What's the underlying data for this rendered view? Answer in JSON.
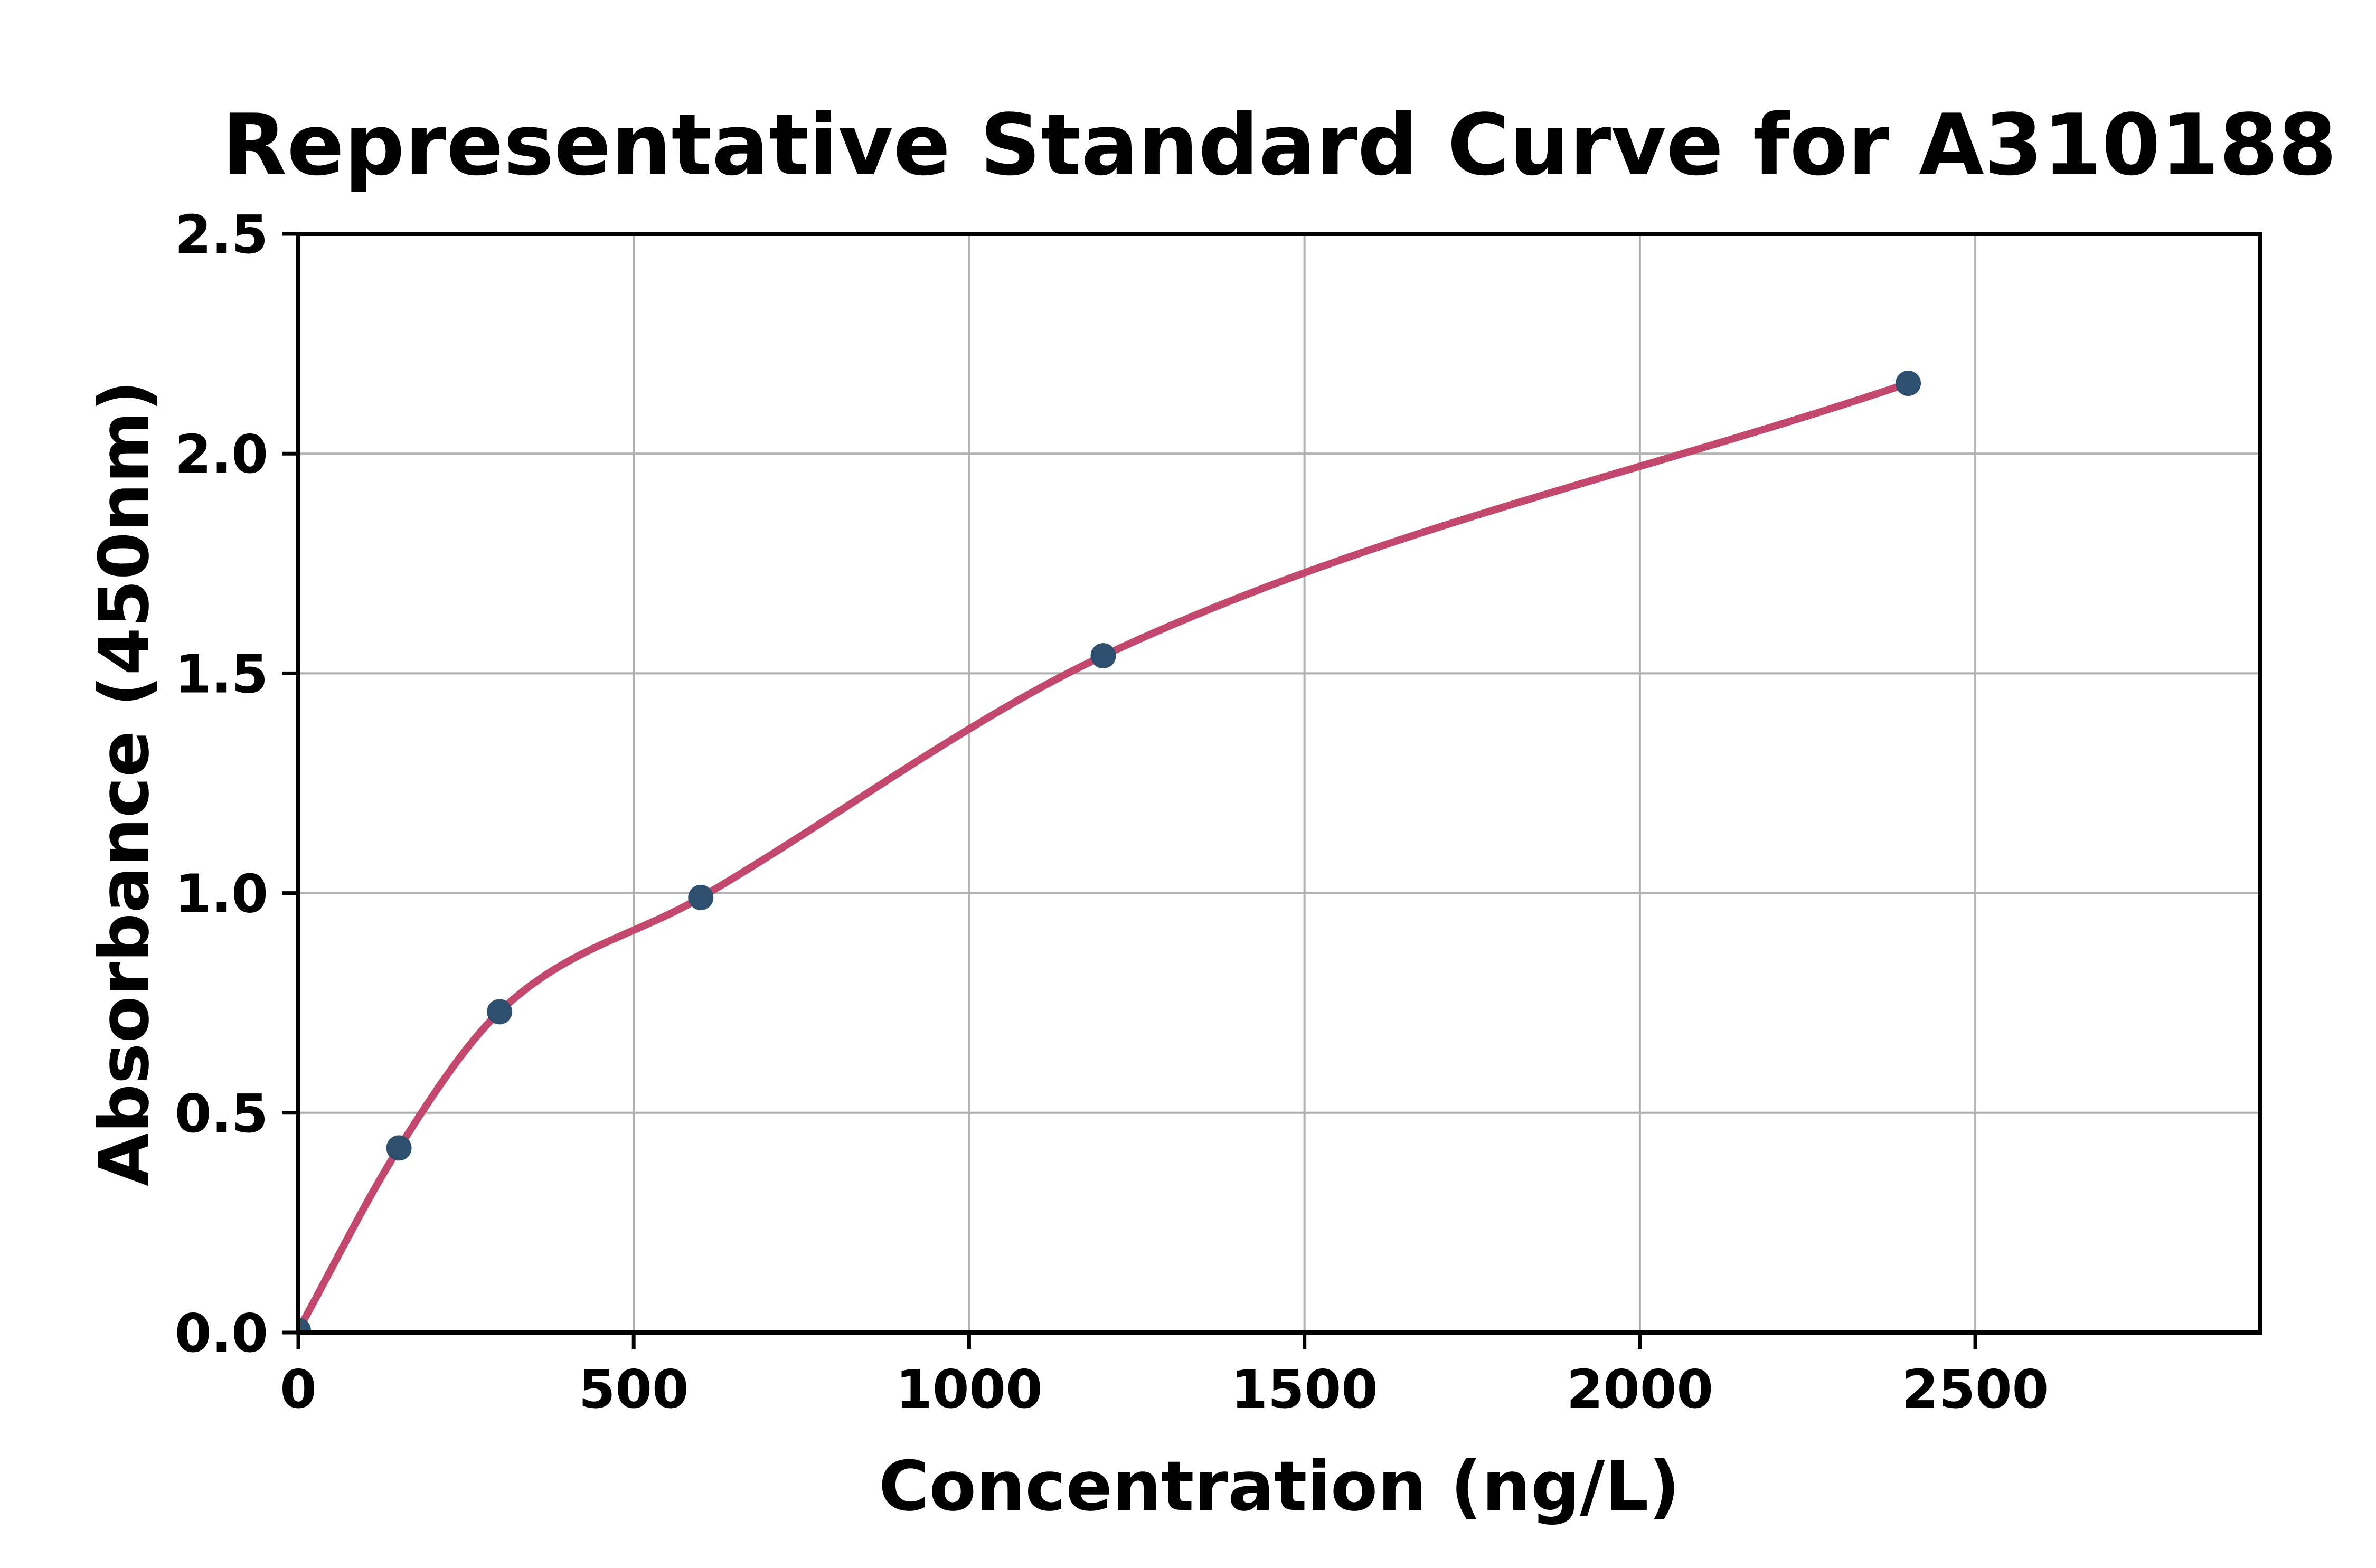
{
  "chart_data": {
    "type": "scatter",
    "title": "Representative Standard Curve for A310188",
    "xlabel": "Concentration (ng/L)",
    "ylabel": "Absorbance (450nm)",
    "xlim": [
      0,
      2925
    ],
    "ylim": [
      0,
      2.5
    ],
    "xticks": [
      0,
      500,
      1000,
      1500,
      2000,
      2500
    ],
    "xtick_labels": [
      "0",
      "500",
      "1000",
      "1500",
      "2000",
      "2500"
    ],
    "yticks": [
      0,
      0.5,
      1.0,
      1.5,
      2.0,
      2.5
    ],
    "ytick_labels": [
      "0.0",
      "0.5",
      "1.0",
      "1.5",
      "2.0",
      "2.5"
    ],
    "grid": true,
    "legend": null,
    "series": [
      {
        "name": "standard-points",
        "kind": "scatter",
        "color": "#2E4F6E",
        "points": [
          [
            0,
            0.005
          ],
          [
            150,
            0.42
          ],
          [
            300,
            0.73
          ],
          [
            600,
            0.99
          ],
          [
            1200,
            1.54
          ],
          [
            2400,
            2.16
          ]
        ]
      },
      {
        "name": "fitted-curve",
        "kind": "smooth-line",
        "color": "#C2486E",
        "x_start": 0,
        "x_end": 2400,
        "through": "standard-points"
      }
    ],
    "style_colors": {
      "grid": "#B0B0B0",
      "spine": "#000000",
      "text": "#000000",
      "background": "#FFFFFF"
    }
  }
}
